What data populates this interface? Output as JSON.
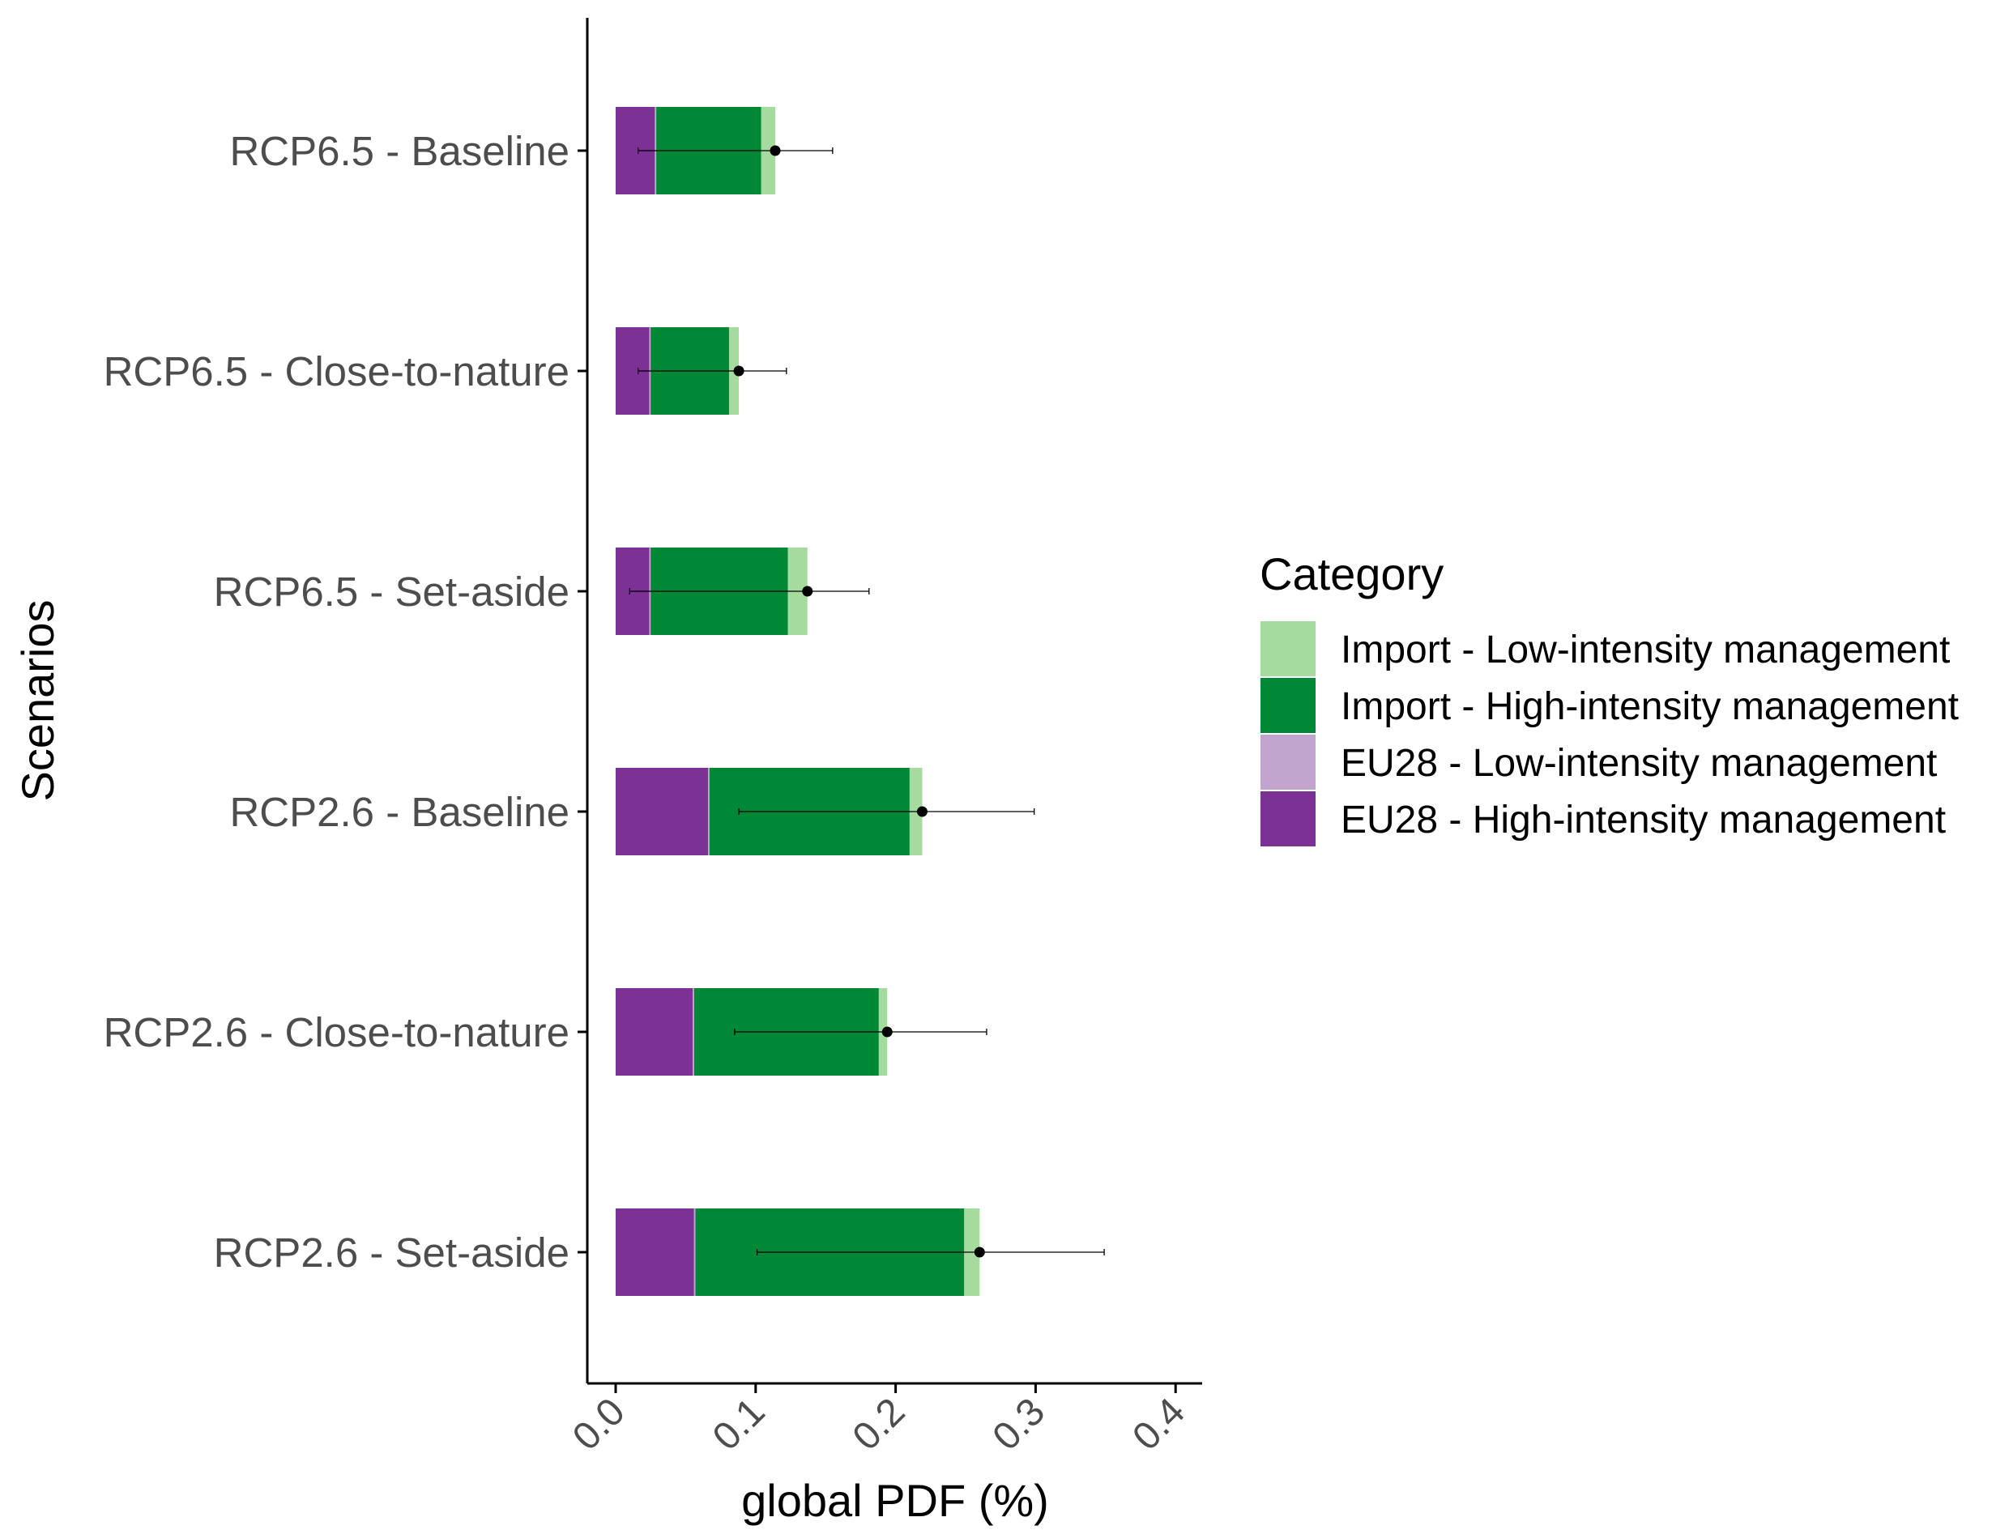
{
  "chart_data": {
    "type": "bar",
    "orientation": "horizontal",
    "stacked": true,
    "categories": [
      "RCP6.5 - Baseline",
      "RCP6.5 - Close-to-nature",
      "RCP6.5 - Set-aside",
      "RCP2.6 - Baseline",
      "RCP2.6 - Close-to-nature",
      "RCP2.6 - Set-aside"
    ],
    "series": [
      {
        "name": "EU28 - High-intensity management",
        "color": "#7b3294",
        "values": [
          0.028,
          0.024,
          0.024,
          0.066,
          0.055,
          0.056
        ]
      },
      {
        "name": "EU28 - Low-intensity management",
        "color": "#c2a5cf",
        "values": [
          0.001,
          0.001,
          0.001,
          0.001,
          0.001,
          0.001
        ]
      },
      {
        "name": "Import - High-intensity management",
        "color": "#008837",
        "values": [
          0.075,
          0.056,
          0.098,
          0.143,
          0.132,
          0.192
        ]
      },
      {
        "name": "Import - Low-intensity management",
        "color": "#a6dba0",
        "values": [
          0.01,
          0.007,
          0.014,
          0.009,
          0.006,
          0.011
        ]
      }
    ],
    "totals": [
      0.114,
      0.088,
      0.137,
      0.219,
      0.194,
      0.26
    ],
    "error_low": [
      0.016,
      0.016,
      0.01,
      0.088,
      0.085,
      0.101
    ],
    "error_high": [
      0.155,
      0.122,
      0.181,
      0.299,
      0.265,
      0.349
    ],
    "xlabel": "global PDF (%)",
    "ylabel": "Scenarios",
    "xlim": [
      -0.02,
      0.42
    ],
    "xticks": [
      "0.0",
      "0.1",
      "0.2",
      "0.3",
      "0.4"
    ],
    "xtick_values": [
      0.0,
      0.1,
      0.2,
      0.3,
      0.4
    ],
    "legend": {
      "title": "Category",
      "position": "right",
      "entries": [
        {
          "label": "Import - Low-intensity management",
          "color": "#a6dba0"
        },
        {
          "label": "Import - High-intensity management",
          "color": "#008837"
        },
        {
          "label": "EU28 - Low-intensity management",
          "color": "#c2a5cf"
        },
        {
          "label": "EU28 - High-intensity management",
          "color": "#7b3294"
        }
      ]
    },
    "grid": false
  }
}
